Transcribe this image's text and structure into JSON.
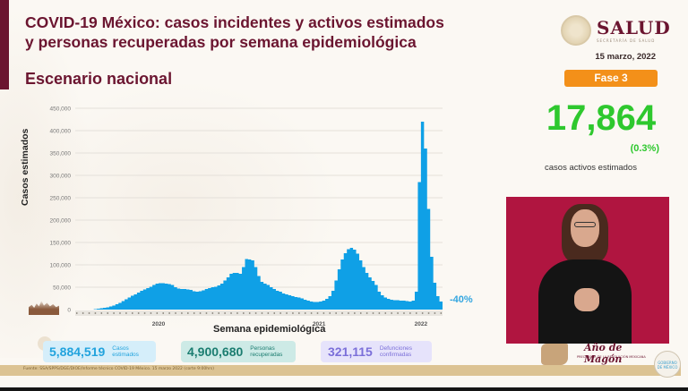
{
  "header": {
    "title_line1": "COVID-19 México: casos incidentes y activos estimados",
    "title_line2": "y personas recuperadas por semana epidemiológica",
    "subtitle": "Escenario nacional",
    "logo_name": "SALUD",
    "logo_sub": "SECRETARÍA DE SALUD",
    "date": "15 marzo, 2022",
    "phase": "Fase 3"
  },
  "active_cases": {
    "value": "17,864",
    "percent": "(0.3%)",
    "label": "casos activos estimados"
  },
  "colors": {
    "brand": "#6b1530",
    "bars": "#0fa0e6",
    "active": "#2ec82e",
    "phase": "#f39019",
    "change": "#33a6e0"
  },
  "change_label": "-40%",
  "stats": {
    "casos": {
      "value": "5,884,519",
      "label_line1": "Casos",
      "label_line2": "estimados"
    },
    "recuperadas": {
      "value": "4,900,680",
      "label_line1": "Personas",
      "label_line2": "recuperadas"
    },
    "defunciones": {
      "value": "321,115",
      "label_line1": "Defunciones",
      "label_line2": "confirmadas"
    }
  },
  "footer": {
    "source": "Fuente: SSA/SPPS/DGE/DIOE/Informe técnico COVID-19 México. 15 marzo 2022 (corte 9:00hrs)",
    "magon_title": "Año de Magón",
    "magon_sub": "PRECURSOR DE LA REVOLUCIÓN MEXICANA",
    "mx_seal": "GOBIERNO DE MÉXICO"
  },
  "chart_data": {
    "type": "bar",
    "title": "COVID-19 México: casos incidentes y activos estimados y personas recuperadas por semana epidemiológica",
    "xlabel": "Semana epidemiológica",
    "ylabel": "Casos estimados",
    "ylim": [
      0,
      450000
    ],
    "yticks": [
      0,
      50000,
      100000,
      150000,
      200000,
      250000,
      300000,
      350000,
      400000,
      450000
    ],
    "ytick_labels": [
      "0",
      "50,000",
      "100,000",
      "150,000",
      "200,000",
      "250,000",
      "300,000",
      "350,000",
      "400,000",
      "450,000"
    ],
    "year_labels": [
      {
        "label": "2020",
        "week_index": 27
      },
      {
        "label": "2021",
        "week_index": 79
      },
      {
        "label": "2022",
        "week_index": 112
      }
    ],
    "grid": true,
    "annotation": "-40%",
    "series": [
      {
        "name": "Casos estimados por semana",
        "values": [
          0,
          0,
          0,
          0,
          0,
          0,
          1000,
          2000,
          3000,
          4000,
          5000,
          7000,
          9000,
          12000,
          15000,
          19000,
          23000,
          27000,
          31000,
          34000,
          38000,
          42000,
          45000,
          48000,
          51000,
          55000,
          58000,
          59000,
          59000,
          58000,
          57000,
          55000,
          50000,
          47000,
          46000,
          46000,
          45000,
          44000,
          41000,
          40000,
          41000,
          43000,
          46000,
          48000,
          50000,
          51000,
          54000,
          58000,
          65000,
          72000,
          80000,
          82000,
          82000,
          80000,
          95000,
          113000,
          112000,
          110000,
          95000,
          75000,
          62000,
          58000,
          55000,
          50000,
          46000,
          42000,
          40000,
          36000,
          34000,
          32000,
          30000,
          28000,
          27000,
          25000,
          22000,
          20000,
          18000,
          17000,
          17000,
          18000,
          20000,
          24000,
          30000,
          42000,
          65000,
          90000,
          112000,
          126000,
          135000,
          138000,
          134000,
          125000,
          110000,
          95000,
          82000,
          72000,
          64000,
          55000,
          40000,
          32000,
          27000,
          24000,
          22000,
          21000,
          21000,
          20000,
          20000,
          19000,
          18000,
          20000,
          40000,
          285000,
          420000,
          360000,
          225000,
          118000,
          60000,
          30000,
          18000
        ]
      }
    ]
  }
}
